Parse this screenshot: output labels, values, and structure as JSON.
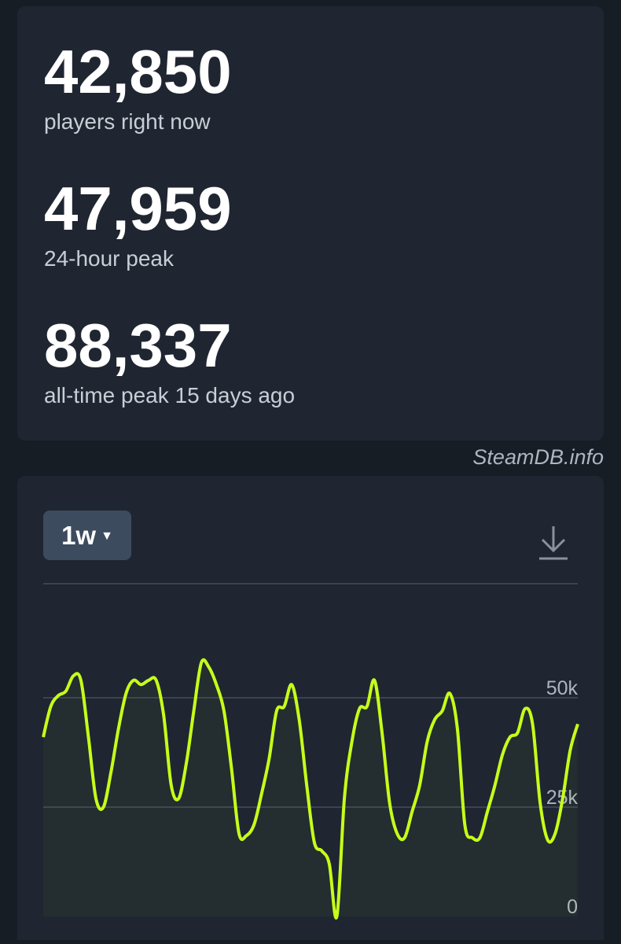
{
  "stats": {
    "current": {
      "value": "42,850",
      "label": "players right now"
    },
    "peak24": {
      "value": "47,959",
      "label": "24-hour peak"
    },
    "alltime": {
      "value": "88,337",
      "label": "all-time peak 15 days ago"
    }
  },
  "watermark": "SteamDB.info",
  "chart": {
    "range_label": "1w",
    "dropdown_icon": "caret-down",
    "download_icon": "download-icon",
    "line_color": "#c6ff1a"
  },
  "chart_data": {
    "type": "line",
    "title": "",
    "xlabel": "",
    "ylabel": "",
    "ylim": [
      0,
      60000
    ],
    "yticks": [
      "0",
      "25k",
      "50k"
    ],
    "ytick_values": [
      0,
      25000,
      50000
    ],
    "series": [
      {
        "values": [
          41000,
          48000,
          50500,
          51500,
          55000,
          54000,
          41000,
          27000,
          25000,
          33000,
          43000,
          51000,
          54000,
          53000,
          54000,
          54000,
          46000,
          30000,
          27000,
          35000,
          47000,
          58000,
          57000,
          53000,
          47000,
          34000,
          19000,
          18500,
          21000,
          28000,
          36000,
          47000,
          48000,
          53000,
          45000,
          30000,
          17000,
          15000,
          12000,
          0,
          27000,
          40000,
          47500,
          48000,
          54000,
          42000,
          26000,
          19000,
          18000,
          24000,
          30000,
          40000,
          45000,
          47000,
          51000,
          43000,
          21000,
          18000,
          18000,
          24000,
          30000,
          37000,
          41000,
          42000,
          47500,
          44000,
          26000,
          17500,
          19000,
          27000,
          38000,
          44000
        ]
      }
    ]
  }
}
